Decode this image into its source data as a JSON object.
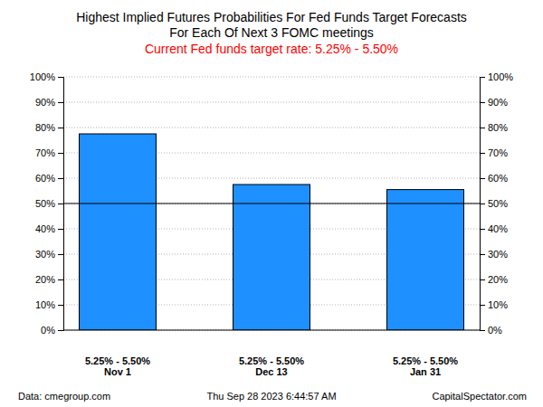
{
  "chart_data": {
    "type": "bar",
    "title": "Highest Implied Futures Probabilities For Fed Funds Target Forecasts",
    "title_line2": "For Each Of Next 3 FOMC meetings",
    "subtitle": "Current Fed funds target rate: 5.25% - 5.50%",
    "categories": [
      "Nov 1",
      "Dec 13",
      "Jan 31"
    ],
    "category_targets": [
      "5.25% - 5.50%",
      "5.25% - 5.50%",
      "5.25% - 5.50%"
    ],
    "values": [
      77.5,
      57.5,
      55.5
    ],
    "color": "#1e90ff",
    "reference_line": 50,
    "ylim": [
      0,
      100
    ],
    "yticks": [
      {
        "value": 0,
        "label": "0%"
      },
      {
        "value": 10,
        "label": "10%"
      },
      {
        "value": 20,
        "label": "20%"
      },
      {
        "value": 30,
        "label": "30%"
      },
      {
        "value": 40,
        "label": "40%"
      },
      {
        "value": 50,
        "label": "50%"
      },
      {
        "value": 60,
        "label": "60%"
      },
      {
        "value": 70,
        "label": "70%"
      },
      {
        "value": 80,
        "label": "80%"
      },
      {
        "value": 90,
        "label": "90%"
      },
      {
        "value": 100,
        "label": "100%"
      }
    ],
    "y2lim": [
      0,
      100
    ],
    "y2ticks": [
      {
        "value": 0,
        "label": "0%"
      },
      {
        "value": 10,
        "label": "10%"
      },
      {
        "value": 20,
        "label": "20%"
      },
      {
        "value": 30,
        "label": "30%"
      },
      {
        "value": 40,
        "label": "40%"
      },
      {
        "value": 50,
        "label": "50%"
      },
      {
        "value": 60,
        "label": "60%"
      },
      {
        "value": 70,
        "label": "70%"
      },
      {
        "value": 80,
        "label": "80%"
      },
      {
        "value": 90,
        "label": "90%"
      },
      {
        "value": 100,
        "label": "100%"
      }
    ],
    "grid": true,
    "source": "Data: cmegroup.com",
    "timestamp": "Thu Sep 28 2023 6:44:57 AM",
    "credit": "CapitalSpectator.com"
  }
}
